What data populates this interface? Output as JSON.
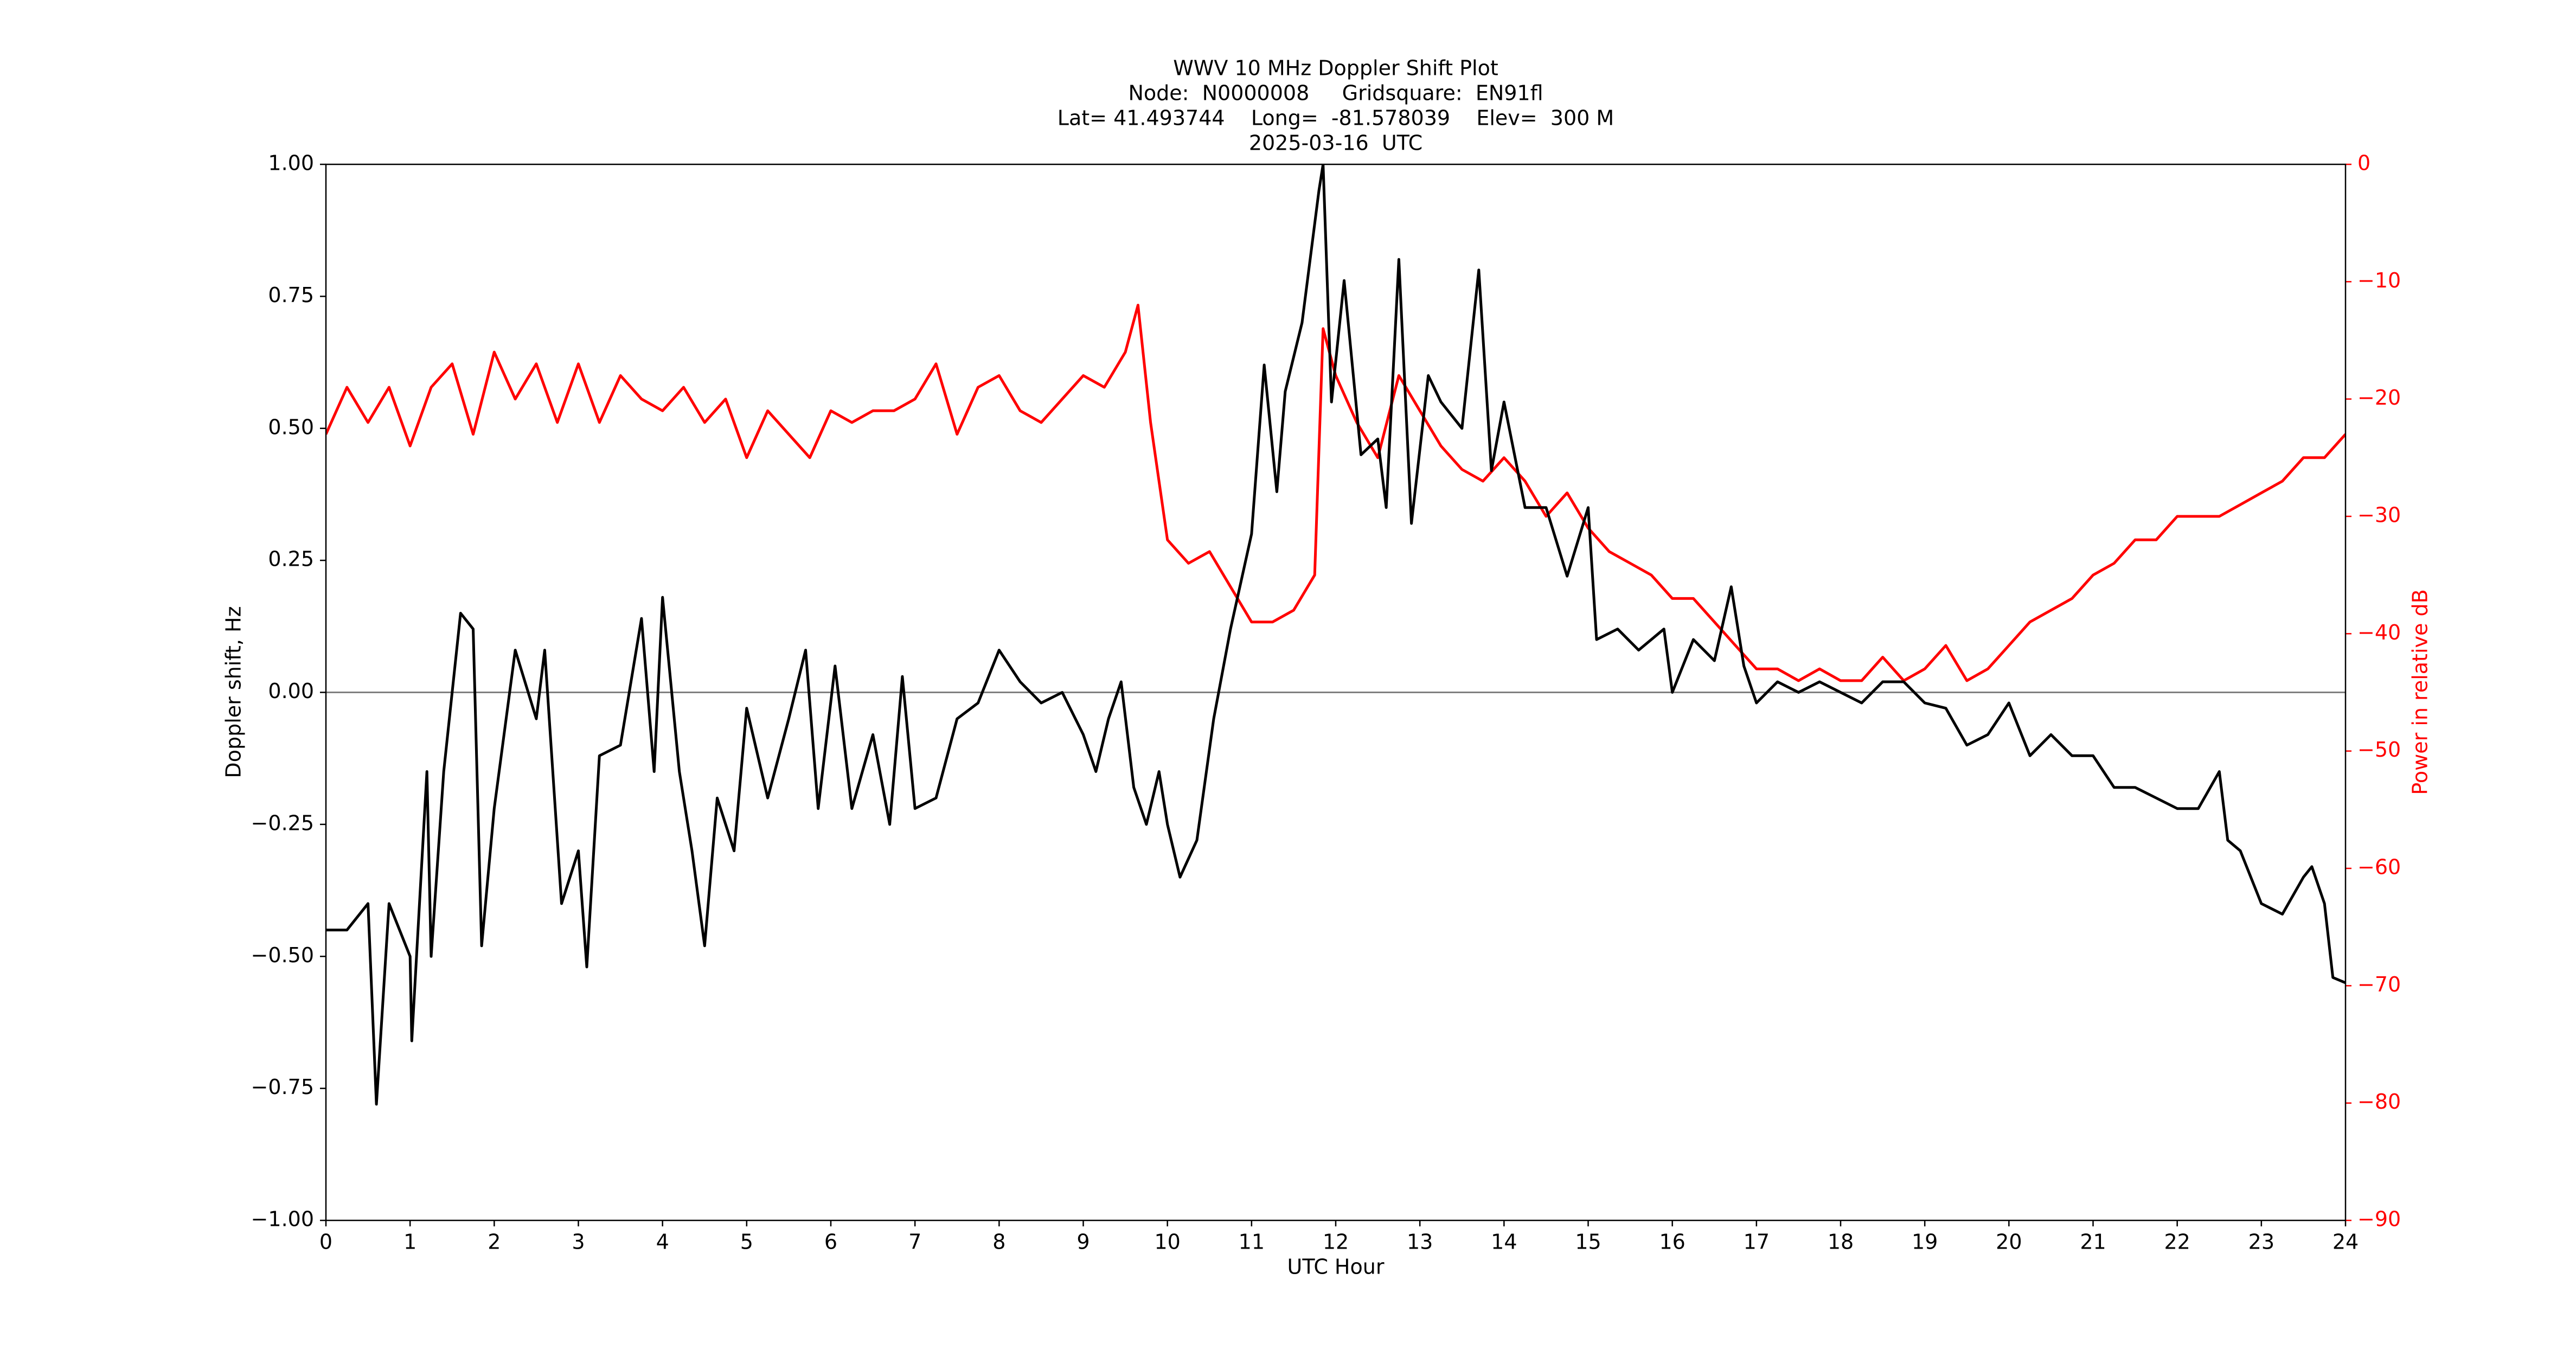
{
  "chart_data": {
    "type": "line",
    "title_lines": [
      "WWV 10 MHz Doppler Shift Plot",
      "Node:  N0000008     Gridsquare:  EN91fl",
      "Lat= 41.493744    Long=  -81.578039    Elev=  300 M",
      "2025-03-16  UTC"
    ],
    "xlabel": "UTC Hour",
    "ylabel": "Doppler shift, Hz",
    "y2label": "Power in relative dB",
    "xlim": [
      0,
      24
    ],
    "xticks": [
      0,
      1,
      2,
      3,
      4,
      5,
      6,
      7,
      8,
      9,
      10,
      11,
      12,
      13,
      14,
      15,
      16,
      17,
      18,
      19,
      20,
      21,
      22,
      23,
      24
    ],
    "ylim": [
      -1,
      1
    ],
    "yticks": [
      {
        "value": -1,
        "label": "−1.00"
      },
      {
        "value": -0.75,
        "label": "−0.75"
      },
      {
        "value": -0.5,
        "label": "−0.50"
      },
      {
        "value": -0.25,
        "label": "−0.25"
      },
      {
        "value": 0,
        "label": "0.00"
      },
      {
        "value": 0.25,
        "label": "0.25"
      },
      {
        "value": 0.5,
        "label": "0.50"
      },
      {
        "value": 0.75,
        "label": "0.75"
      },
      {
        "value": 1,
        "label": "1.00"
      }
    ],
    "y2lim": [
      -90,
      0
    ],
    "y2ticks": [
      {
        "value": -90,
        "label": "−90"
      },
      {
        "value": -80,
        "label": "−80"
      },
      {
        "value": -70,
        "label": "−70"
      },
      {
        "value": -60,
        "label": "−60"
      },
      {
        "value": -50,
        "label": "−50"
      },
      {
        "value": -40,
        "label": "−40"
      },
      {
        "value": -30,
        "label": "−30"
      },
      {
        "value": -20,
        "label": "−20"
      },
      {
        "value": -10,
        "label": "−10"
      },
      0
    ],
    "zero_line": 0,
    "series": [
      {
        "color": "#000000",
        "axis": "y",
        "x": [
          0,
          0.25,
          0.5,
          0.6,
          0.75,
          1.0,
          1.02,
          1.2,
          1.25,
          1.4,
          1.6,
          1.75,
          1.85,
          2.0,
          2.25,
          2.5,
          2.6,
          2.8,
          3.0,
          3.1,
          3.25,
          3.5,
          3.75,
          3.9,
          4.0,
          4.2,
          4.35,
          4.5,
          4.65,
          4.85,
          5.0,
          5.25,
          5.5,
          5.7,
          5.85,
          6.05,
          6.25,
          6.5,
          6.7,
          6.85,
          7.0,
          7.25,
          7.5,
          7.75,
          8.0,
          8.25,
          8.5,
          8.75,
          9.0,
          9.15,
          9.3,
          9.45,
          9.6,
          9.75,
          9.9,
          10.0,
          10.15,
          10.35,
          10.55,
          10.75,
          11.0,
          11.15,
          11.3,
          11.4,
          11.6,
          11.8,
          11.85,
          11.95,
          12.1,
          12.3,
          12.5,
          12.6,
          12.75,
          12.9,
          13.1,
          13.25,
          13.5,
          13.7,
          13.85,
          14.0,
          14.25,
          14.5,
          14.75,
          15.0,
          15.1,
          15.35,
          15.6,
          15.9,
          16.0,
          16.25,
          16.5,
          16.7,
          16.85,
          17.0,
          17.25,
          17.5,
          17.75,
          18.0,
          18.25,
          18.5,
          18.75,
          19.0,
          19.25,
          19.5,
          19.75,
          20.0,
          20.25,
          20.5,
          20.75,
          21.0,
          21.25,
          21.5,
          21.75,
          22.0,
          22.25,
          22.5,
          22.6,
          22.75,
          23.0,
          23.25,
          23.5,
          23.6,
          23.75,
          23.85,
          24.0
        ],
        "values": [
          -0.45,
          -0.45,
          -0.4,
          -0.78,
          -0.4,
          -0.5,
          -0.66,
          -0.15,
          -0.5,
          -0.15,
          0.15,
          0.12,
          -0.48,
          -0.22,
          0.08,
          -0.05,
          0.08,
          -0.4,
          -0.3,
          -0.52,
          -0.12,
          -0.1,
          0.14,
          -0.15,
          0.18,
          -0.15,
          -0.3,
          -0.48,
          -0.2,
          -0.3,
          -0.03,
          -0.2,
          -0.05,
          0.08,
          -0.22,
          0.05,
          -0.22,
          -0.08,
          -0.25,
          0.03,
          -0.22,
          -0.2,
          -0.05,
          -0.02,
          0.08,
          0.02,
          -0.02,
          0.0,
          -0.08,
          -0.15,
          -0.05,
          0.02,
          -0.18,
          -0.25,
          -0.15,
          -0.25,
          -0.35,
          -0.28,
          -0.05,
          0.12,
          0.3,
          0.62,
          0.38,
          0.57,
          0.7,
          0.95,
          1.0,
          0.55,
          0.78,
          0.45,
          0.48,
          0.35,
          0.82,
          0.32,
          0.6,
          0.55,
          0.5,
          0.8,
          0.42,
          0.55,
          0.35,
          0.35,
          0.22,
          0.35,
          0.1,
          0.12,
          0.08,
          0.12,
          0.0,
          0.1,
          0.06,
          0.2,
          0.05,
          -0.02,
          0.02,
          0.0,
          0.02,
          0.0,
          -0.02,
          0.02,
          0.02,
          -0.02,
          -0.03,
          -0.1,
          -0.08,
          -0.02,
          -0.12,
          -0.08,
          -0.12,
          -0.12,
          -0.18,
          -0.18,
          -0.2,
          -0.22,
          -0.22,
          -0.15,
          -0.28,
          -0.3,
          -0.4,
          -0.42,
          -0.35,
          -0.33,
          -0.4,
          -0.54,
          -0.55
        ]
      },
      {
        "color": "#ff0000",
        "axis": "y2",
        "x": [
          0,
          0.25,
          0.5,
          0.75,
          1.0,
          1.25,
          1.5,
          1.75,
          2.0,
          2.25,
          2.5,
          2.75,
          3.0,
          3.25,
          3.5,
          3.75,
          4.0,
          4.25,
          4.5,
          4.75,
          5.0,
          5.25,
          5.5,
          5.75,
          6.0,
          6.25,
          6.5,
          6.75,
          7.0,
          7.25,
          7.5,
          7.75,
          8.0,
          8.25,
          8.5,
          8.75,
          9.0,
          9.25,
          9.5,
          9.65,
          9.8,
          10.0,
          10.25,
          10.5,
          10.75,
          11.0,
          11.25,
          11.5,
          11.75,
          11.85,
          12.0,
          12.25,
          12.5,
          12.75,
          13.0,
          13.25,
          13.5,
          13.75,
          14.0,
          14.25,
          14.5,
          14.75,
          15.0,
          15.25,
          15.5,
          15.75,
          16.0,
          16.25,
          16.5,
          16.75,
          17.0,
          17.25,
          17.5,
          17.75,
          18.0,
          18.25,
          18.5,
          18.75,
          19.0,
          19.25,
          19.5,
          19.75,
          20.0,
          20.25,
          20.5,
          20.75,
          21.0,
          21.25,
          21.5,
          21.75,
          22.0,
          22.25,
          22.5,
          22.75,
          23.0,
          23.25,
          23.5,
          23.75,
          24.0
        ],
        "values": [
          -23,
          -19,
          -22,
          -19,
          -24,
          -19,
          -17,
          -23,
          -16,
          -20,
          -17,
          -22,
          -17,
          -22,
          -18,
          -20,
          -21,
          -19,
          -22,
          -20,
          -25,
          -21,
          -23,
          -25,
          -21,
          -22,
          -21,
          -21,
          -20,
          -17,
          -23,
          -19,
          -18,
          -21,
          -22,
          -20,
          -18,
          -19,
          -16,
          -12,
          -22,
          -32,
          -34,
          -33,
          -36,
          -39,
          -39,
          -38,
          -35,
          -14,
          -18,
          -22,
          -25,
          -18,
          -21,
          -24,
          -26,
          -27,
          -25,
          -27,
          -30,
          -28,
          -31,
          -33,
          -34,
          -35,
          -37,
          -37,
          -39,
          -41,
          -43,
          -43,
          -44,
          -43,
          -44,
          -44,
          -42,
          -44,
          -43,
          -41,
          -44,
          -43,
          -41,
          -39,
          -38,
          -37,
          -35,
          -34,
          -32,
          -32,
          -30,
          -30,
          -30,
          -29,
          -28,
          -27,
          -25,
          -25,
          -23
        ]
      }
    ]
  }
}
